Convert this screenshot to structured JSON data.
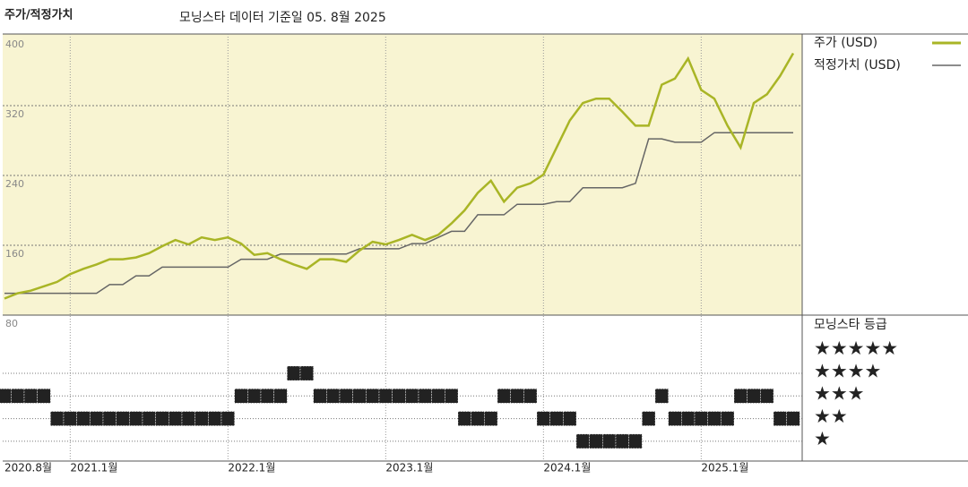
{
  "chart_data": {
    "type": "line",
    "title": "주가/적정가치",
    "subtitle": "모닝스타 데이터 기준일 05. 8월 2025",
    "categories": [
      "2020.8월",
      null,
      null,
      null,
      null,
      "2021.1월",
      null,
      null,
      null,
      null,
      null,
      null,
      null,
      null,
      null,
      null,
      null,
      "2022.1월",
      null,
      null,
      null,
      null,
      null,
      null,
      null,
      null,
      null,
      null,
      null,
      "2023.1월",
      null,
      null,
      null,
      null,
      null,
      null,
      null,
      null,
      null,
      null,
      null,
      "2024.1월",
      null,
      null,
      null,
      null,
      null,
      null,
      null,
      null,
      null,
      null,
      null,
      "2025.1월",
      null,
      null,
      null,
      null,
      null,
      null,
      null
    ],
    "series": [
      {
        "name": "주가 (USD)",
        "color": "#a9b526",
        "values": [
          99,
          105,
          108,
          113,
          118,
          127,
          133,
          138,
          144,
          144,
          146,
          151,
          159,
          166,
          161,
          169,
          166,
          169,
          162,
          149,
          151,
          144,
          138,
          133,
          144,
          144,
          141,
          154,
          164,
          161,
          166,
          172,
          166,
          172,
          185,
          200,
          220,
          234,
          210,
          226,
          231,
          241,
          272,
          303,
          323,
          328,
          328,
          313,
          297,
          297,
          344,
          351,
          374,
          338,
          328,
          297,
          272,
          323,
          333,
          354,
          380
        ]
      },
      {
        "name": "적정가치 (USD)",
        "color": "#666666",
        "values": [
          105,
          105,
          105,
          105,
          105,
          105,
          105,
          105,
          115,
          115,
          125,
          125,
          135,
          135,
          135,
          135,
          135,
          135,
          144,
          144,
          144,
          150,
          150,
          150,
          150,
          150,
          150,
          156,
          156,
          156,
          156,
          162,
          162,
          169,
          176,
          176,
          195,
          195,
          195,
          207,
          207,
          207,
          210,
          210,
          226,
          226,
          226,
          226,
          231,
          282,
          282,
          278,
          278,
          278,
          289,
          289,
          289,
          289,
          289,
          289,
          289
        ]
      }
    ],
    "ylim": [
      80,
      400
    ],
    "yticks": [
      80,
      160,
      240,
      320,
      400
    ],
    "grid": true,
    "rating": {
      "title": "모닝스타 등급",
      "labels": [
        "★★★★★",
        "★★★★",
        "★★★",
        "★★",
        "★"
      ],
      "values": [
        3,
        3,
        3,
        3,
        2,
        2,
        2,
        2,
        2,
        2,
        2,
        2,
        2,
        2,
        2,
        2,
        2,
        2,
        3,
        3,
        3,
        3,
        4,
        4,
        3,
        3,
        3,
        3,
        3,
        3,
        3,
        3,
        3,
        3,
        3,
        2,
        2,
        2,
        3,
        3,
        3,
        2,
        2,
        2,
        1,
        1,
        1,
        1,
        1,
        2,
        3,
        2,
        2,
        2,
        2,
        2,
        3,
        3,
        3,
        2,
        2
      ]
    }
  }
}
